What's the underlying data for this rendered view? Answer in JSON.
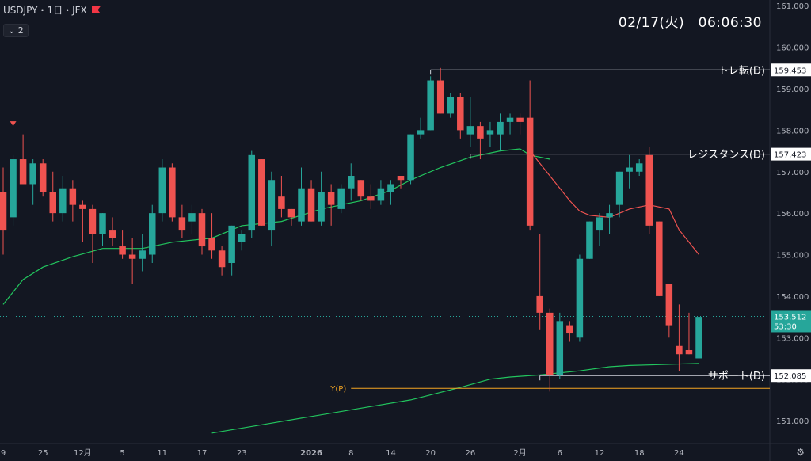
{
  "header": {
    "symbol": "USDJPY・1日・JFX",
    "layer_label": "⌄ 2"
  },
  "clock": "02/17(火)　06:06:30",
  "colors": {
    "up": "#26a69a",
    "down": "#ef5350",
    "ma_fast": "#ef5350",
    "ma_slow": "#22c55e",
    "pivot": "#f5a623",
    "price_tag": "#26a69a"
  },
  "icons": {
    "flag": "flag-icon",
    "settings": "gear-icon"
  },
  "chart_data": {
    "type": "candlestick",
    "y_ticks": [
      "161.000",
      "160.000",
      "159.000",
      "158.000",
      "157.000",
      "156.000",
      "155.000",
      "154.000",
      "153.000",
      "152.000",
      "151.000"
    ],
    "ylim": [
      150.6,
      161.1
    ],
    "x_ticks": [
      {
        "i": 0,
        "label": "9"
      },
      {
        "i": 4,
        "label": "25"
      },
      {
        "i": 8,
        "label": "12月"
      },
      {
        "i": 12,
        "label": "5"
      },
      {
        "i": 16,
        "label": "11"
      },
      {
        "i": 20,
        "label": "17"
      },
      {
        "i": 24,
        "label": "23"
      },
      {
        "i": 31,
        "label": "2026"
      },
      {
        "i": 35,
        "label": "8"
      },
      {
        "i": 39,
        "label": "14"
      },
      {
        "i": 43,
        "label": "20"
      },
      {
        "i": 47,
        "label": "26"
      },
      {
        "i": 52,
        "label": "2月"
      },
      {
        "i": 56,
        "label": "6"
      },
      {
        "i": 60,
        "label": "12"
      },
      {
        "i": 64,
        "label": "18"
      },
      {
        "i": 68,
        "label": "24"
      }
    ],
    "candles": [
      [
        156.5,
        157.1,
        155.0,
        155.6
      ],
      [
        155.9,
        157.4,
        155.7,
        157.3
      ],
      [
        157.3,
        157.9,
        156.7,
        156.7
      ],
      [
        156.7,
        157.3,
        156.2,
        157.2
      ],
      [
        157.2,
        157.3,
        156.4,
        156.5
      ],
      [
        156.5,
        157.0,
        155.8,
        156.0
      ],
      [
        156.0,
        156.9,
        155.8,
        156.6
      ],
      [
        156.6,
        156.8,
        155.8,
        156.2
      ],
      [
        156.2,
        156.3,
        155.3,
        156.1
      ],
      [
        156.1,
        156.2,
        154.8,
        155.5
      ],
      [
        155.5,
        156.0,
        155.2,
        156.0
      ],
      [
        155.6,
        155.9,
        155.2,
        155.4
      ],
      [
        155.2,
        155.6,
        154.9,
        155.0
      ],
      [
        155.0,
        155.4,
        154.3,
        154.9
      ],
      [
        154.9,
        155.5,
        154.6,
        155.1
      ],
      [
        155.0,
        156.2,
        154.8,
        156.0
      ],
      [
        156.0,
        157.3,
        155.8,
        157.1
      ],
      [
        157.1,
        157.2,
        155.8,
        155.9
      ],
      [
        155.9,
        156.2,
        155.4,
        155.6
      ],
      [
        155.8,
        156.2,
        155.5,
        156.0
      ],
      [
        156.0,
        156.1,
        155.0,
        155.2
      ],
      [
        155.4,
        156.0,
        154.9,
        155.1
      ],
      [
        155.1,
        155.2,
        154.5,
        154.7
      ],
      [
        154.8,
        155.7,
        154.5,
        155.7
      ],
      [
        155.3,
        155.6,
        155.1,
        155.5
      ],
      [
        155.6,
        157.5,
        155.4,
        157.4
      ],
      [
        157.3,
        157.3,
        155.7,
        155.7
      ],
      [
        155.6,
        157.0,
        155.2,
        156.8
      ],
      [
        156.4,
        156.9,
        155.9,
        156.1
      ],
      [
        156.1,
        156.1,
        155.7,
        155.9
      ],
      [
        155.8,
        157.1,
        155.7,
        156.6
      ],
      [
        156.6,
        156.8,
        155.8,
        155.8
      ],
      [
        155.8,
        157.0,
        155.7,
        156.5
      ],
      [
        156.5,
        156.7,
        155.7,
        156.2
      ],
      [
        156.1,
        156.7,
        156.0,
        156.6
      ],
      [
        156.6,
        157.2,
        156.3,
        156.9
      ],
      [
        156.8,
        156.8,
        156.3,
        156.4
      ],
      [
        156.4,
        156.7,
        156.1,
        156.3
      ],
      [
        156.3,
        156.8,
        156.2,
        156.6
      ],
      [
        156.5,
        156.8,
        156.2,
        156.7
      ],
      [
        156.9,
        156.9,
        156.6,
        156.8
      ],
      [
        156.8,
        157.9,
        156.7,
        157.9
      ],
      [
        157.9,
        158.3,
        157.8,
        158.0
      ],
      [
        158.0,
        159.3,
        158.0,
        159.2
      ],
      [
        159.2,
        159.5,
        158.4,
        158.4
      ],
      [
        158.4,
        158.9,
        158.3,
        158.8
      ],
      [
        158.8,
        158.9,
        157.8,
        158.0
      ],
      [
        157.9,
        158.8,
        157.6,
        158.1
      ],
      [
        158.1,
        158.2,
        157.3,
        157.8
      ],
      [
        157.9,
        158.2,
        157.6,
        158.0
      ],
      [
        157.9,
        158.4,
        157.5,
        158.2
      ],
      [
        158.2,
        158.4,
        157.9,
        158.3
      ],
      [
        158.3,
        158.4,
        157.9,
        158.2
      ],
      [
        158.3,
        159.2,
        155.6,
        155.7
      ],
      [
        154.0,
        155.5,
        153.2,
        153.6
      ],
      [
        153.6,
        153.7,
        151.7,
        152.1
      ],
      [
        152.1,
        153.6,
        152.0,
        153.4
      ],
      [
        153.3,
        153.4,
        152.9,
        153.1
      ],
      [
        153.0,
        155.0,
        152.9,
        154.9
      ],
      [
        154.9,
        155.8,
        154.9,
        155.8
      ],
      [
        155.6,
        156.0,
        155.2,
        155.9
      ],
      [
        155.9,
        156.2,
        155.5,
        156.0
      ],
      [
        156.2,
        157.0,
        155.9,
        157.0
      ],
      [
        157.0,
        157.4,
        156.6,
        157.1
      ],
      [
        157.0,
        157.3,
        156.9,
        157.2
      ],
      [
        157.4,
        157.6,
        155.5,
        155.7
      ],
      [
        155.8,
        155.8,
        154.0,
        154.0
      ],
      [
        154.3,
        154.3,
        153.0,
        153.3
      ],
      [
        152.8,
        153.8,
        152.2,
        152.6
      ],
      [
        152.7,
        153.6,
        152.6,
        152.6
      ],
      [
        152.5,
        153.6,
        152.5,
        153.5
      ]
    ],
    "ma_fast": [
      [
        53,
        157.5
      ],
      [
        55,
        156.9
      ],
      [
        57,
        156.3
      ],
      [
        58,
        156.05
      ],
      [
        59,
        155.95
      ],
      [
        61,
        155.9
      ],
      [
        63,
        156.1
      ],
      [
        65,
        156.2
      ],
      [
        67,
        156.1
      ],
      [
        68,
        155.6
      ],
      [
        69,
        155.3
      ],
      [
        70,
        155.0
      ]
    ],
    "ma_slow": [
      [
        0,
        153.8
      ],
      [
        2,
        154.4
      ],
      [
        4,
        154.7
      ],
      [
        7,
        154.95
      ],
      [
        10,
        155.15
      ],
      [
        14,
        155.15
      ],
      [
        17,
        155.3
      ],
      [
        21,
        155.4
      ],
      [
        24,
        155.7
      ],
      [
        28,
        155.8
      ],
      [
        32,
        156.1
      ],
      [
        36,
        156.3
      ],
      [
        39,
        156.55
      ],
      [
        41,
        156.8
      ],
      [
        44,
        157.1
      ],
      [
        47,
        157.35
      ],
      [
        50,
        157.5
      ],
      [
        52,
        157.55
      ],
      [
        53,
        157.4
      ],
      [
        55,
        157.3
      ]
    ],
    "ma_slow_lower": [
      [
        21,
        150.7
      ],
      [
        26,
        150.9
      ],
      [
        31,
        151.1
      ],
      [
        36,
        151.3
      ],
      [
        41,
        151.5
      ],
      [
        46,
        151.8
      ],
      [
        49,
        152.0
      ],
      [
        51,
        152.05
      ],
      [
        54,
        152.1
      ],
      [
        58,
        152.2
      ],
      [
        61,
        152.3
      ],
      [
        63,
        152.33
      ],
      [
        66,
        152.35
      ],
      [
        70,
        152.38
      ]
    ],
    "levels": [
      {
        "label": "トレ転(D)",
        "price": 159.453,
        "tag": "159.453",
        "from_index": 43
      },
      {
        "label": "レジスタンス(D)",
        "price": 157.423,
        "tag": "157.423",
        "from_index": 47
      },
      {
        "label": "サポート(D)",
        "price": 152.085,
        "tag": "152.085",
        "from_index": 54
      }
    ],
    "pivot": {
      "label": "Y(P)",
      "price": 151.78,
      "from_index": 35
    },
    "last_price": {
      "price": 153.512,
      "tag": "153.512",
      "countdown": "53:30"
    },
    "marker": {
      "index": 1,
      "price": 158.1
    }
  }
}
